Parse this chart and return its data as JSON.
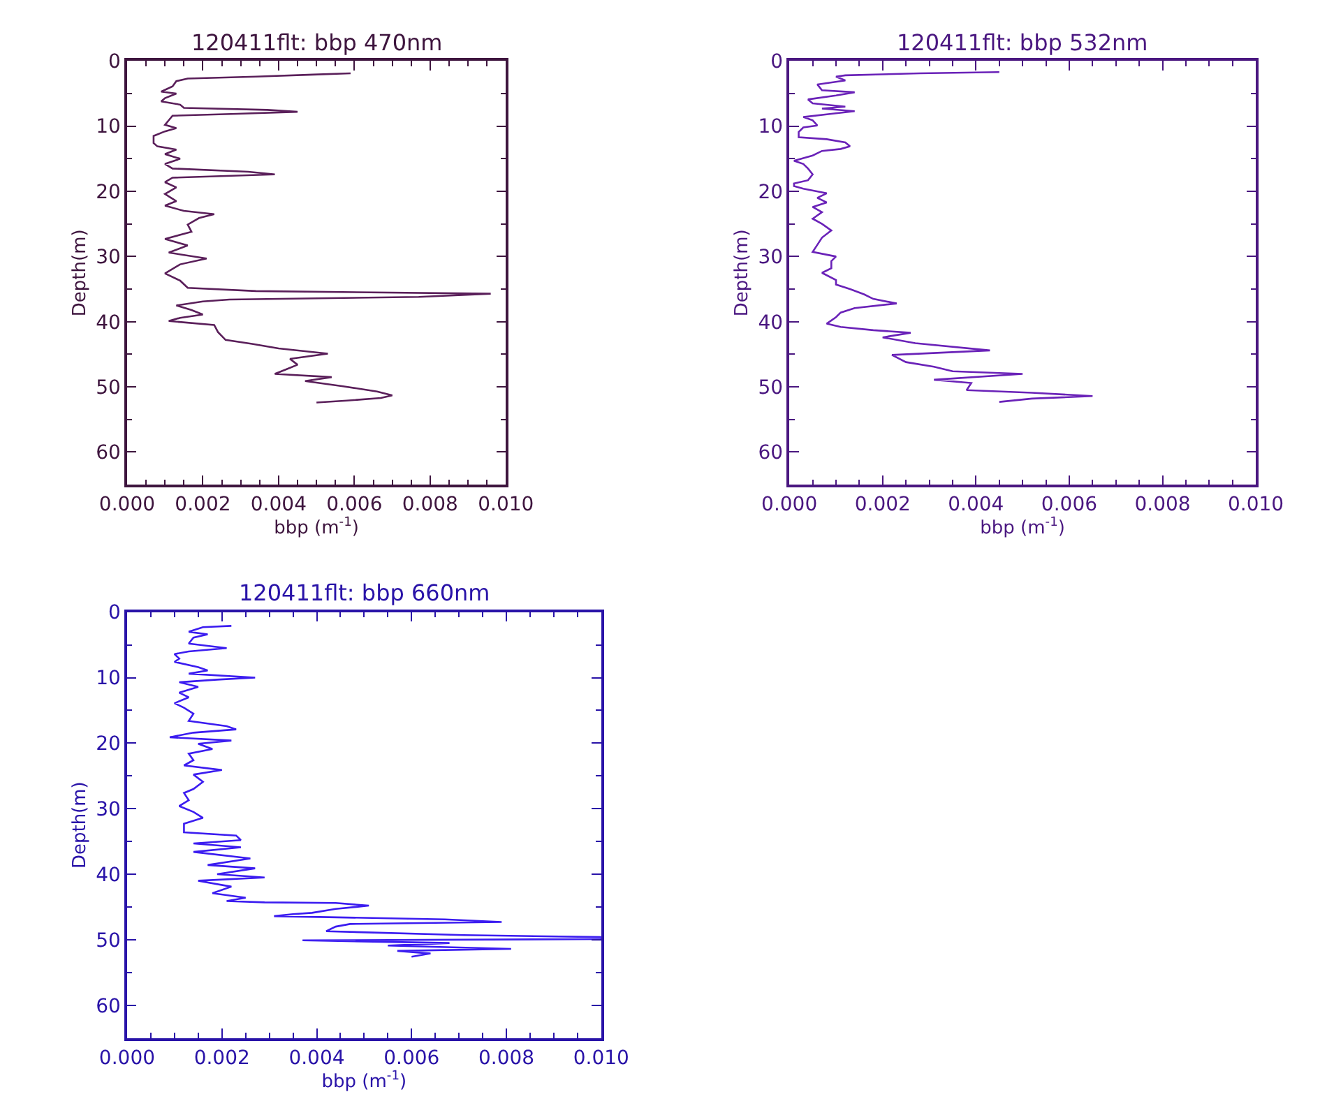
{
  "chart_data": [
    {
      "type": "line",
      "title": "120411flt: bbp 470nm",
      "xlabel": "bbp (m$^{-1}$)",
      "ylabel": "Depth(m)",
      "xlim": [
        0,
        0.01
      ],
      "xticks": [
        {
          "value": 0,
          "label": "0.000"
        },
        {
          "value": 0.002,
          "label": "0.002"
        },
        {
          "value": 0.004,
          "label": "0.004"
        },
        {
          "value": 0.006,
          "label": "0.006"
        },
        {
          "value": 0.008,
          "label": "0.008"
        },
        {
          "value": 0.01,
          "label": "0.010"
        }
      ],
      "ylim": [
        65,
        0
      ],
      "yticks": [
        0,
        10,
        20,
        30,
        40,
        50,
        60
      ],
      "marker": "none",
      "line_style": "solid",
      "series": [
        {
          "color": "#5a1f5a",
          "x": [
            0.0059,
            0.0049,
            0.0034,
            0.0016,
            0.0013,
            0.0012,
            0.0009,
            0.0013,
            0.001,
            0.0009,
            0.0014,
            0.0015,
            0.0037,
            0.0045,
            0.0029,
            0.0012,
            0.0011,
            0.001,
            0.0013,
            0.001,
            0.0007,
            0.0007,
            0.0008,
            0.0013,
            0.001,
            0.0014,
            0.001,
            0.0012,
            0.0032,
            0.0039,
            0.0012,
            0.001,
            0.0013,
            0.001,
            0.0013,
            0.001,
            0.0015,
            0.0023,
            0.0019,
            0.0016,
            0.0017,
            0.001,
            0.0016,
            0.0011,
            0.0021,
            0.0014,
            0.001,
            0.0014,
            0.0016,
            0.0034,
            0.0096,
            0.0077,
            0.0027,
            0.002,
            0.0013,
            0.0017,
            0.002,
            0.0014,
            0.0011,
            0.0023,
            0.0024,
            0.0026,
            0.0033,
            0.004,
            0.0053,
            0.0043,
            0.0045,
            0.0042,
            0.0039,
            0.0054,
            0.0047,
            0.0057,
            0.0066,
            0.007,
            0.0067,
            0.0058,
            0.005
          ],
          "values": [
            1.9,
            2.1,
            2.4,
            2.7,
            3.1,
            3.9,
            4.7,
            5.0,
            5.7,
            6.2,
            6.7,
            7.2,
            7.5,
            7.8,
            8.1,
            8.4,
            9.1,
            9.8,
            10.3,
            10.8,
            11.5,
            12.6,
            13.1,
            13.6,
            14.3,
            15.0,
            15.8,
            16.5,
            17.0,
            17.4,
            17.9,
            18.6,
            19.4,
            20.4,
            21.5,
            22.2,
            23.0,
            23.5,
            24.1,
            25.1,
            26.2,
            27.3,
            28.3,
            29.4,
            30.3,
            31.2,
            32.6,
            33.7,
            34.8,
            35.3,
            35.7,
            36.2,
            36.6,
            36.9,
            37.5,
            38.2,
            38.9,
            39.4,
            39.9,
            40.5,
            41.6,
            42.8,
            43.4,
            44.1,
            44.9,
            45.7,
            46.6,
            47.3,
            48.0,
            48.5,
            49.1,
            49.9,
            50.7,
            51.3,
            51.7,
            52.1,
            52.4
          ]
        }
      ]
    },
    {
      "type": "line",
      "title": "120411flt: bbp 532nm",
      "xlabel": "bbp (m$^{-1}$)",
      "ylabel": "Depth(m)",
      "xlim": [
        0,
        0.01
      ],
      "xticks": [
        {
          "value": 0,
          "label": "0.000"
        },
        {
          "value": 0.002,
          "label": "0.002"
        },
        {
          "value": 0.004,
          "label": "0.004"
        },
        {
          "value": 0.006,
          "label": "0.006"
        },
        {
          "value": 0.008,
          "label": "0.008"
        },
        {
          "value": 0.01,
          "label": "0.010"
        }
      ],
      "ylim": [
        65,
        0
      ],
      "yticks": [
        0,
        10,
        20,
        30,
        40,
        50,
        60
      ],
      "marker": "none",
      "line_style": "solid",
      "series": [
        {
          "color": "#6a22b8",
          "x": [
            0.0045,
            0.0028,
            0.0012,
            0.001,
            0.0012,
            0.0006,
            0.0007,
            0.0014,
            0.001,
            0.0004,
            0.0005,
            0.0012,
            0.0007,
            0.0014,
            0.0009,
            0.0003,
            0.0005,
            0.0006,
            0.0003,
            0.0002,
            0.0002,
            0.0008,
            0.0012,
            0.0013,
            0.0011,
            0.0007,
            0.0005,
            0.0001,
            0.0003,
            0.0004,
            0.0005,
            0.0004,
            0.0001,
            0.0001,
            0.0003,
            0.0008,
            0.0006,
            0.0008,
            0.0005,
            0.0007,
            0.0005,
            0.0007,
            0.0009,
            0.0007,
            0.0006,
            0.0005,
            0.001,
            0.0009,
            0.0009,
            0.0007,
            0.001,
            0.001,
            0.0013,
            0.0016,
            0.0018,
            0.0023,
            0.0014,
            0.0011,
            0.001,
            0.0008,
            0.0011,
            0.0018,
            0.0026,
            0.002,
            0.0027,
            0.0043,
            0.0022,
            0.0025,
            0.0031,
            0.0035,
            0.005,
            0.0031,
            0.0039,
            0.0038,
            0.0052,
            0.0065,
            0.0052,
            0.0045
          ],
          "values": [
            1.7,
            1.9,
            2.2,
            2.4,
            3.0,
            3.6,
            4.5,
            4.8,
            5.3,
            5.9,
            6.5,
            7.0,
            7.3,
            7.7,
            8.1,
            8.6,
            9.1,
            9.9,
            10.2,
            10.9,
            11.7,
            12.0,
            12.5,
            13.1,
            13.5,
            13.8,
            14.5,
            15.3,
            15.8,
            16.5,
            17.4,
            18.3,
            18.8,
            19.2,
            19.6,
            20.3,
            21.0,
            21.7,
            22.4,
            23.2,
            24.2,
            25.0,
            26.0,
            27.1,
            28.2,
            29.3,
            30.0,
            30.7,
            31.8,
            32.5,
            33.6,
            34.3,
            35.0,
            35.8,
            36.5,
            37.2,
            37.9,
            38.6,
            39.3,
            40.3,
            40.8,
            41.3,
            41.7,
            42.4,
            43.3,
            44.4,
            45.1,
            46.2,
            46.9,
            47.6,
            48.0,
            48.9,
            49.4,
            50.5,
            50.9,
            51.4,
            51.8,
            52.3
          ]
        }
      ]
    },
    {
      "type": "line",
      "title": "120411flt: bbp 660nm",
      "xlabel": "bbp (m$^{-1}$)",
      "ylabel": "Depth(m)",
      "xlim": [
        0,
        0.01
      ],
      "xticks": [
        {
          "value": 0,
          "label": "0.000"
        },
        {
          "value": 0.002,
          "label": "0.002"
        },
        {
          "value": 0.004,
          "label": "0.004"
        },
        {
          "value": 0.006,
          "label": "0.006"
        },
        {
          "value": 0.008,
          "label": "0.008"
        },
        {
          "value": 0.01,
          "label": "0.010"
        }
      ],
      "ylim": [
        65,
        0
      ],
      "yticks": [
        0,
        10,
        20,
        30,
        40,
        50,
        60
      ],
      "marker": "none",
      "line_style": "solid",
      "series": [
        {
          "color": "#3b1cf0",
          "x": [
            0.0022,
            0.0016,
            0.0013,
            0.0017,
            0.0014,
            0.0013,
            0.0021,
            0.0013,
            0.001,
            0.0011,
            0.001,
            0.0015,
            0.0017,
            0.0013,
            0.0027,
            0.0019,
            0.0011,
            0.0015,
            0.0011,
            0.0013,
            0.001,
            0.0012,
            0.0014,
            0.0013,
            0.0021,
            0.0023,
            0.0014,
            0.0009,
            0.0022,
            0.0015,
            0.0018,
            0.0013,
            0.0014,
            0.0012,
            0.002,
            0.0014,
            0.0016,
            0.0014,
            0.0012,
            0.0013,
            0.0011,
            0.0014,
            0.0016,
            0.0012,
            0.0012,
            0.0023,
            0.0024,
            0.0014,
            0.0024,
            0.0014,
            0.0026,
            0.0017,
            0.0027,
            0.0019,
            0.0029,
            0.0015,
            0.0022,
            0.0018,
            0.0025,
            0.0021,
            0.0029,
            0.0044,
            0.0051,
            0.0044,
            0.0039,
            0.0035,
            0.0031,
            0.0067,
            0.0079,
            0.0047,
            0.0044,
            0.0042,
            0.0071,
            0.01,
            0.01,
            0.0037,
            0.0068,
            0.0055,
            0.0081,
            0.0057,
            0.0064,
            0.006
          ],
          "values": [
            2.1,
            2.3,
            3.0,
            3.4,
            3.9,
            4.8,
            5.5,
            6.0,
            6.4,
            7.1,
            7.6,
            8.4,
            8.9,
            9.4,
            10.0,
            10.3,
            10.7,
            11.4,
            12.3,
            13.0,
            13.9,
            14.6,
            15.5,
            16.6,
            17.4,
            17.9,
            18.4,
            19.1,
            19.6,
            20.1,
            20.9,
            21.6,
            22.6,
            23.4,
            24.1,
            24.8,
            25.9,
            27.0,
            27.6,
            28.7,
            29.6,
            30.5,
            31.4,
            32.3,
            33.6,
            34.1,
            34.8,
            35.3,
            35.9,
            36.6,
            37.6,
            38.6,
            39.1,
            40.0,
            40.5,
            41.0,
            41.9,
            42.9,
            43.6,
            44.1,
            44.3,
            44.4,
            44.8,
            45.3,
            45.9,
            46.1,
            46.4,
            46.9,
            47.3,
            47.6,
            48.0,
            48.7,
            49.3,
            49.6,
            49.9,
            50.1,
            50.5,
            50.9,
            51.4,
            51.7,
            52.1,
            52.6
          ]
        }
      ]
    }
  ]
}
